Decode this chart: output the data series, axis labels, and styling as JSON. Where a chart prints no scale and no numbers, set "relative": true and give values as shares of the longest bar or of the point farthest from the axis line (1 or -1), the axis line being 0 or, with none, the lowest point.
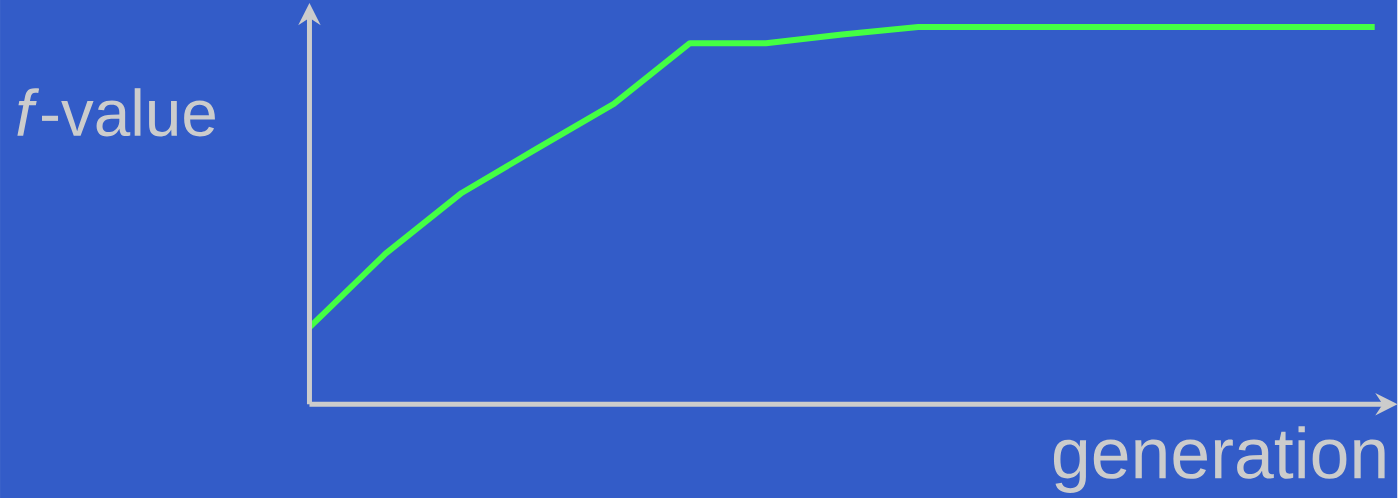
{
  "chart_data": {
    "type": "line",
    "relative": true,
    "xlabel": "generation",
    "ylabel": "*f*-value",
    "categories": [
      null,
      null,
      null,
      null,
      null,
      null,
      null,
      null,
      null,
      null,
      null,
      null,
      null,
      null,
      null
    ],
    "series": [
      {
        "color": "#44ff44",
        "values": [
          0.204,
          0.399,
          0.56,
          0.679,
          0.796,
          0.957,
          0.957,
          0.98,
          1,
          1,
          1,
          1,
          1,
          1,
          1
        ]
      }
    ]
  }
}
